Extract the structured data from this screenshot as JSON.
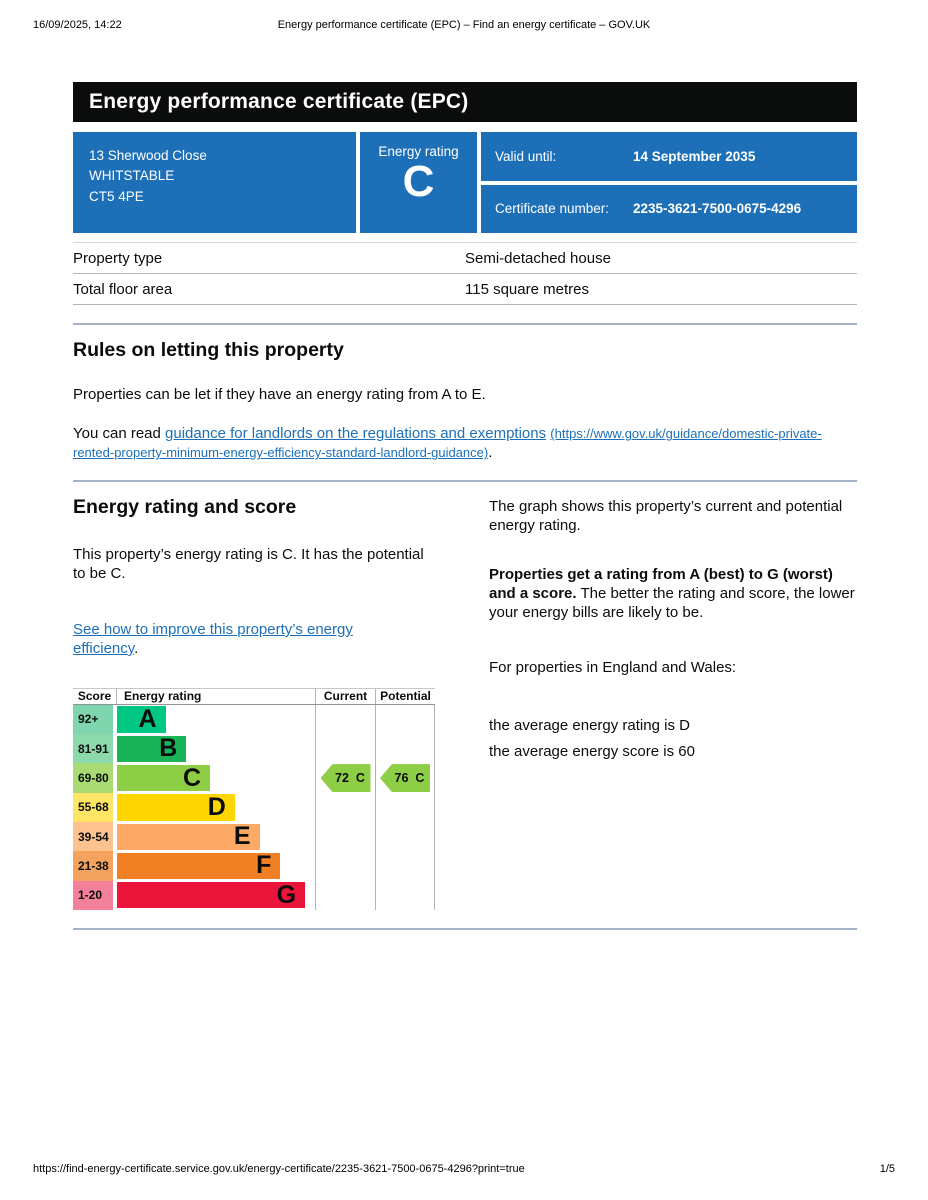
{
  "meta": {
    "datetime": "16/09/2025, 14:22",
    "doc_title": "Energy performance certificate (EPC) – Find an energy certificate – GOV.UK",
    "footer_url": "https://find-energy-certificate.service.gov.uk/energy-certificate/2235-3621-7500-0675-4296?print=true",
    "page_indicator": "1/5"
  },
  "banner": {
    "title": "Energy performance certificate (EPC)"
  },
  "summary_box": {
    "accent_color": "#1d70b8",
    "address_lines": [
      "13 Sherwood Close",
      "WHITSTABLE",
      "CT5 4PE"
    ],
    "energy_rating_label": "Energy rating",
    "energy_rating_value": "C",
    "valid_until_label": "Valid until:",
    "valid_until_value": "14 September 2035",
    "certificate_number_label": "Certificate number:",
    "certificate_number_value": "2235-3621-7500-0675-4296"
  },
  "property_details": {
    "rows": [
      {
        "label": "Property type",
        "value": "Semi-detached house"
      },
      {
        "label": "Total floor area",
        "value": "115 square metres"
      }
    ]
  },
  "rules_section": {
    "heading": "Rules on letting this property",
    "paragraph1": "Properties can be let if they have an energy rating from A to E.",
    "paragraph2_prefix": "You can read ",
    "link_text": "guidance for landlords on the regulations and exemptions",
    "link_url_text": "(https://www.gov.uk/guidance/domestic-private-rented-property-minimum-energy-efficiency-standard-landlord-guidance)",
    "paragraph2_suffix": "."
  },
  "rating_section": {
    "heading": "Energy rating and score",
    "intro": "This property’s energy rating is C. It has the potential to be C.",
    "improve_link_text": "See how to improve this property’s energy efficiency",
    "improve_link_suffix": ".",
    "right_para1": "The graph shows this property’s current and potential energy rating.",
    "right_para2_bold": "Properties get a rating from A (best) to G (worst) and a score.",
    "right_para2_rest": " The better the rating and score, the lower your energy bills are likely to be.",
    "right_para3": "For properties in England and Wales:",
    "right_line1": "the average energy rating is D",
    "right_line2": "the average energy score is 60"
  },
  "chart_data": {
    "type": "bar",
    "title": "EPC energy rating bands with current and potential markers",
    "headers": [
      "Score",
      "Energy rating",
      "Current",
      "Potential"
    ],
    "legend_position": "none",
    "grid": false,
    "bands": [
      {
        "range": "92+",
        "letter": "A",
        "color": "#00c781",
        "score_tint": "#7fd6ae",
        "bar_pct": 24.5
      },
      {
        "range": "81-91",
        "letter": "B",
        "color": "#19b459",
        "score_tint": "#8cd9ab",
        "bar_pct": 35
      },
      {
        "range": "69-80",
        "letter": "C",
        "color": "#8dce46",
        "score_tint": "#aada74",
        "bar_pct": 47
      },
      {
        "range": "55-68",
        "letter": "D",
        "color": "#ffd500",
        "score_tint": "#ffe566",
        "bar_pct": 59.5
      },
      {
        "range": "39-54",
        "letter": "E",
        "color": "#fcaa65",
        "score_tint": "#fdc38f",
        "bar_pct": 72
      },
      {
        "range": "21-38",
        "letter": "F",
        "color": "#ef8023",
        "score_tint": "#f4a35e",
        "bar_pct": 82.5
      },
      {
        "range": "1-20",
        "letter": "G",
        "color": "#e9153b",
        "score_tint": "#f2809a",
        "bar_pct": 95
      }
    ],
    "current": {
      "score": 72,
      "band": "C",
      "band_index": 2,
      "color": "#8dce46"
    },
    "potential": {
      "score": 76,
      "band": "C",
      "band_index": 2,
      "color": "#8dce46"
    }
  }
}
